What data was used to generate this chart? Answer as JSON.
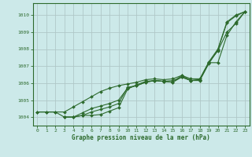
{
  "title": "Graphe pression niveau de la mer (hPa)",
  "bg_color": "#cce9e9",
  "grid_color": "#b0c8c8",
  "line_color": "#2d6a2d",
  "xlim": [
    -0.5,
    23.5
  ],
  "ylim": [
    1003.5,
    1010.7
  ],
  "xticks": [
    0,
    1,
    2,
    3,
    4,
    5,
    6,
    7,
    8,
    9,
    10,
    11,
    12,
    13,
    14,
    15,
    16,
    17,
    18,
    19,
    20,
    21,
    22,
    23
  ],
  "yticks": [
    1004,
    1005,
    1006,
    1007,
    1008,
    1009,
    1010
  ],
  "series": [
    {
      "x": [
        0,
        1,
        2,
        3,
        4,
        5,
        6,
        7,
        8,
        9,
        10,
        11,
        12,
        13,
        14,
        15,
        16,
        17,
        18,
        19,
        20,
        21,
        22,
        23
      ],
      "y": [
        1004.3,
        1004.3,
        1004.3,
        1004.3,
        1004.6,
        1004.9,
        1005.2,
        1005.5,
        1005.7,
        1005.85,
        1005.95,
        1006.05,
        1006.2,
        1006.25,
        1006.2,
        1006.25,
        1006.45,
        1006.25,
        1006.25,
        1007.25,
        1008.0,
        1009.6,
        1010.0,
        1010.2
      ]
    },
    {
      "x": [
        0,
        1,
        2,
        3,
        4,
        5,
        6,
        7,
        8,
        9,
        10,
        11,
        12,
        13,
        14,
        15,
        16,
        17,
        18,
        19,
        20,
        21,
        22,
        23
      ],
      "y": [
        1004.3,
        1004.3,
        1004.3,
        1004.0,
        1004.0,
        1004.1,
        1004.3,
        1004.45,
        1004.6,
        1004.8,
        1005.75,
        1005.85,
        1006.05,
        1006.15,
        1006.1,
        1006.15,
        1006.35,
        1006.15,
        1006.2,
        1007.2,
        1007.9,
        1009.0,
        1009.5,
        1010.2
      ]
    },
    {
      "x": [
        3,
        4,
        5,
        6,
        7,
        8,
        9,
        10,
        11,
        12,
        13,
        14,
        15,
        16,
        17,
        18,
        19,
        20,
        21,
        22,
        23
      ],
      "y": [
        1004.0,
        1004.0,
        1004.25,
        1004.5,
        1004.65,
        1004.8,
        1005.0,
        1005.7,
        1005.85,
        1006.05,
        1006.15,
        1006.1,
        1006.05,
        1006.45,
        1006.15,
        1006.15,
        1007.15,
        1007.95,
        1009.55,
        1009.95,
        1010.2
      ]
    },
    {
      "x": [
        3,
        4,
        5,
        6,
        7,
        8,
        9,
        10,
        11,
        12,
        13,
        14,
        15,
        16,
        17,
        18,
        19,
        20,
        21,
        22,
        23
      ],
      "y": [
        1004.0,
        1004.0,
        1004.1,
        1004.1,
        1004.15,
        1004.35,
        1004.55,
        1005.65,
        1005.9,
        1006.1,
        1006.15,
        1006.1,
        1006.05,
        1006.35,
        1006.15,
        1006.2,
        1007.2,
        1007.2,
        1008.8,
        1009.6,
        1010.2
      ]
    }
  ]
}
